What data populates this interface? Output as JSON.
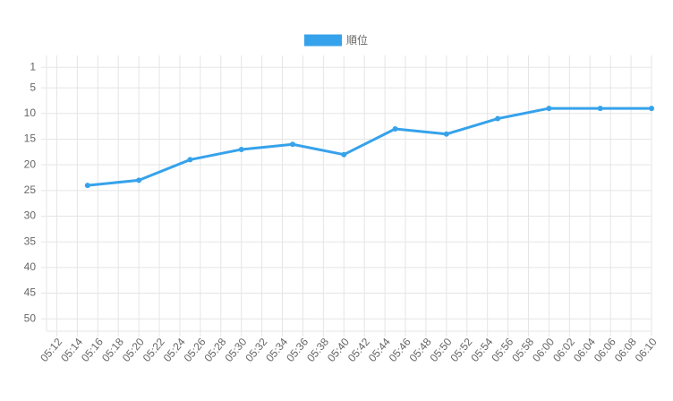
{
  "chart_data": {
    "type": "line",
    "x": [
      "05:15",
      "05:20",
      "05:25",
      "05:30",
      "05:35",
      "05:40",
      "05:45",
      "05:50",
      "05:55",
      "06:00",
      "06:05",
      "06:10"
    ],
    "series": [
      {
        "name": "順位",
        "color": "#36a2eb",
        "values": [
          24,
          23,
          19,
          17,
          16,
          18,
          13,
          14,
          11,
          9,
          9,
          9
        ]
      }
    ],
    "xlim": [
      "05:11",
      "06:10"
    ],
    "xticks": [
      "05:12",
      "05:14",
      "05:16",
      "05:18",
      "05:20",
      "05:22",
      "05:24",
      "05:26",
      "05:28",
      "05:30",
      "05:32",
      "05:34",
      "05:36",
      "05:38",
      "05:40",
      "05:42",
      "05:44",
      "05:46",
      "05:48",
      "05:50",
      "05:52",
      "05:54",
      "05:56",
      "05:58",
      "06:00",
      "06:02",
      "06:04",
      "06:06",
      "06:08",
      "06:10"
    ],
    "ylim": [
      52.4,
      -1.3
    ],
    "yticks": [
      1,
      5,
      10,
      15,
      20,
      25,
      30,
      35,
      40,
      45,
      50
    ],
    "reverse_y": true,
    "grid": true,
    "legend": "top"
  }
}
